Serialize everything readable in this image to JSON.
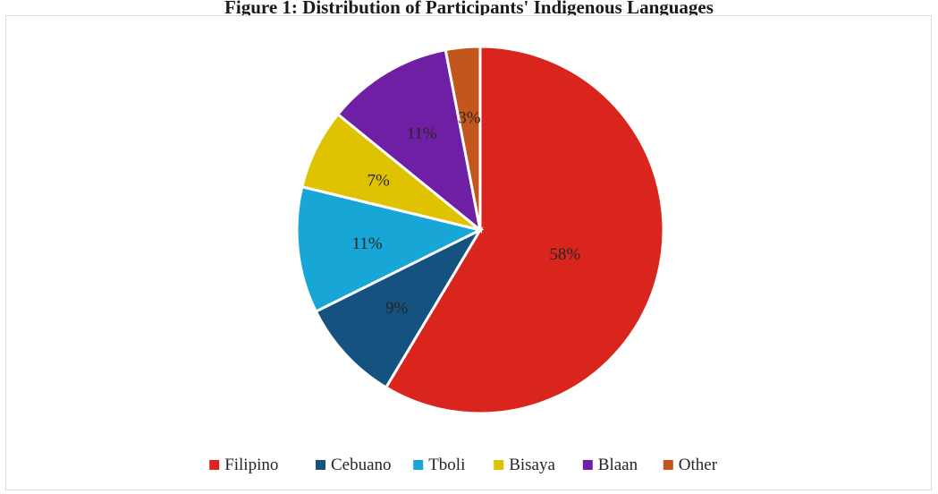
{
  "caption": "Figure 1: Distribution of Participants' Indigenous Languages",
  "chart_data": {
    "type": "pie",
    "title": "",
    "slices": [
      {
        "name": "Filipino",
        "value": 58,
        "label": "58%",
        "color": "#d9251d"
      },
      {
        "name": "Cebuano",
        "value": 9,
        "label": "9%",
        "color": "#16527f"
      },
      {
        "name": "Tboli",
        "value": 11,
        "label": "11%",
        "color": "#17a6d6"
      },
      {
        "name": "Bisaya",
        "value": 7,
        "label": "7%",
        "color": "#e0c300"
      },
      {
        "name": "Blaan",
        "value": 11,
        "label": "11%",
        "color": "#6f1fa3"
      },
      {
        "name": "Other",
        "value": 3,
        "label": "3%",
        "color": "#c2561c"
      }
    ],
    "legend_position": "bottom",
    "direction": "clockwise-from-top"
  }
}
